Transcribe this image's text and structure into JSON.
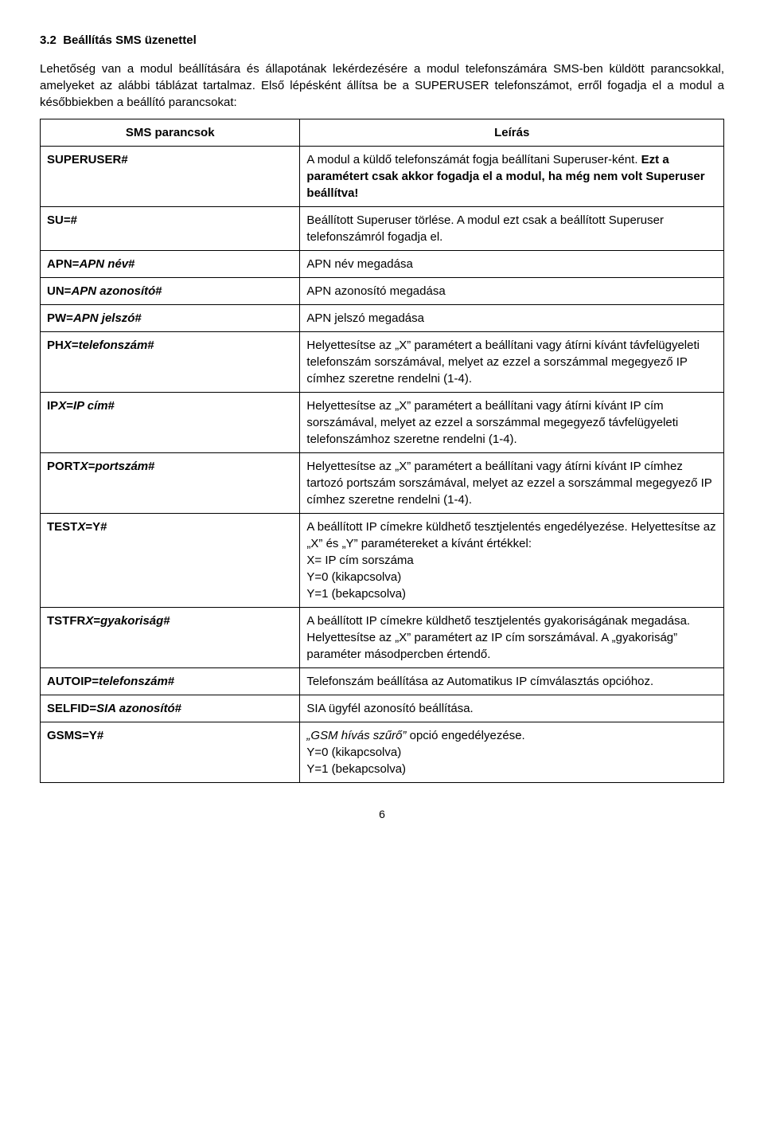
{
  "section": {
    "number": "3.2",
    "title": "Beállítás SMS üzenettel"
  },
  "intro_p1": "Lehetőség van a modul beállítására és állapotának lekérdezésére a modul telefonszámára SMS-ben küldött parancsokkal, amelyeket az alábbi táblázat tartalmaz. Első lépésként állítsa be a SUPERUSER telefonszámot, erről fogadja el a modul a későbbiekben a beállító parancsokat:",
  "table": {
    "header_cmd": "SMS parancsok",
    "header_desc": "Leírás",
    "rows": [
      {
        "cmd": "SUPERUSER#",
        "desc_pre": "A modul a küldő telefonszámát fogja beállítani Superuser-ként. ",
        "desc_bold": "Ezt a paramétert csak akkor fogadja el a modul, ha még nem volt Superuser beállítva!",
        "desc_post": ""
      },
      {
        "cmd": "SU=#",
        "desc": "Beállított Superuser törlése. A modul ezt csak a beállított Superuser telefonszámról fogadja el."
      },
      {
        "cmd_pre": "APN=",
        "cmd_it": "APN név",
        "cmd_post": "#",
        "desc": "APN név megadása"
      },
      {
        "cmd_pre": "UN=",
        "cmd_it": "APN azonosító",
        "cmd_post": "#",
        "desc": "APN azonosító megadása"
      },
      {
        "cmd_pre": "PW=",
        "cmd_it": "APN jelszó",
        "cmd_post": "#",
        "desc": "APN jelszó megadása"
      },
      {
        "cmd_pre": "PH",
        "cmd_it": "X",
        "cmd_mid": "=",
        "cmd_it2": "telefonszám",
        "cmd_post": "#",
        "desc": "Helyettesítse az „X” paramétert a beállítani vagy átírni kívánt távfelügyeleti telefonszám sorszámával, melyet az ezzel a sorszámmal megegyező IP címhez szeretne rendelni (1-4)."
      },
      {
        "cmd_pre": "IP",
        "cmd_it": "X",
        "cmd_mid": "=",
        "cmd_it2": "IP cím",
        "cmd_post": "#",
        "desc": "Helyettesítse az „X” paramétert a beállítani vagy átírni kívánt IP cím sorszámával, melyet az ezzel a sorszámmal megegyező távfelügyeleti telefonszámhoz szeretne rendelni (1-4)."
      },
      {
        "cmd_pre": "PORT",
        "cmd_it": "X",
        "cmd_mid": "=",
        "cmd_it2": "portszám",
        "cmd_post": "#",
        "desc": "Helyettesítse az „X” paramétert a beállítani vagy átírni kívánt IP címhez tartozó portszám sorszámával, melyet az ezzel a sorszámmal megegyező IP címhez szeretne rendelni (1-4)."
      },
      {
        "cmd_pre": "TEST",
        "cmd_it": "X",
        "cmd_mid": "=Y#",
        "desc_lines": [
          "A beállított IP címekre küldhető tesztjelentés engedélyezése. Helyettesítse az „X” és „Y” paramétereket a kívánt értékkel:",
          "X= IP cím sorszáma",
          "Y=0 (kikapcsolva)",
          "Y=1 (bekapcsolva)"
        ]
      },
      {
        "cmd_pre": "TSTFR",
        "cmd_it": "X",
        "cmd_mid": "=",
        "cmd_it2": "gyakoriság",
        "cmd_post": "#",
        "desc": "A beállított IP címekre küldhető tesztjelentés gyakoriságának megadása. Helyettesítse az „X” paramétert az IP cím sorszámával. A „gyakoriság” paraméter másodpercben értendő."
      },
      {
        "cmd_pre": "AUTOIP=",
        "cmd_it": "telefonszám",
        "cmd_post": "#",
        "desc": "Telefonszám beállítása az Automatikus IP címválasztás opcióhoz."
      },
      {
        "cmd_pre": "SELFID=",
        "cmd_it": "SIA azonosító",
        "cmd_post": "#",
        "desc": "SIA ügyfél azonosító beállítása."
      },
      {
        "cmd": "GSMS=Y#",
        "desc_lines": [
          "„GSM hívás szűrő” ",
          "Y=0 (kikapcsolva)",
          "Y=1 (bekapcsolva)"
        ],
        "desc_first_italic_piece": "„GSM hívás szűrő”",
        "desc_first_rest": " opció engedélyezése."
      }
    ]
  },
  "page_number": "6"
}
